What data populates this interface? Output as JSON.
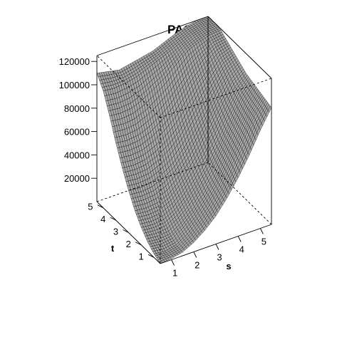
{
  "chart_data": {
    "type": "surface",
    "title": "PACE",
    "xlabel": "s",
    "ylabel": "t",
    "zlabel": "",
    "xlim": [
      0.5,
      5.5
    ],
    "ylim": [
      0.5,
      5.5
    ],
    "zlim": [
      0,
      125000
    ],
    "x_ticks": [
      "1",
      "2",
      "3",
      "4",
      "5"
    ],
    "y_ticks": [
      "1",
      "2",
      "3",
      "4",
      "5"
    ],
    "z_ticks": [
      "20000",
      "40000",
      "60000",
      "80000",
      "100000",
      "120000"
    ],
    "surface_color": "#a9a9a9",
    "mesh_color": "#000000",
    "box": true,
    "grid": false,
    "x_grid": [
      0.5,
      1.0,
      1.5,
      2.0,
      2.5,
      3.0,
      3.5,
      4.0,
      4.5,
      5.0,
      5.5
    ],
    "y_grid": [
      0.5,
      1.0,
      1.5,
      2.0,
      2.5,
      3.0,
      3.5,
      4.0,
      4.5,
      5.0,
      5.5
    ],
    "z_values": [
      [
        0,
        1000,
        3000,
        8000,
        15000,
        24000,
        36000,
        50000,
        66000,
        84000,
        100000
      ],
      [
        3000,
        2000,
        4000,
        10000,
        18000,
        28000,
        40000,
        56000,
        72000,
        90000,
        102000
      ],
      [
        8000,
        7000,
        8000,
        14000,
        22000,
        32000,
        44000,
        60000,
        76000,
        92000,
        104000
      ],
      [
        15000,
        14000,
        15000,
        20000,
        28000,
        38000,
        50000,
        64000,
        80000,
        96000,
        106000
      ],
      [
        24000,
        23000,
        24000,
        28000,
        36000,
        46000,
        58000,
        72000,
        86000,
        100000,
        108000
      ],
      [
        36000,
        35000,
        36000,
        40000,
        46000,
        56000,
        68000,
        80000,
        94000,
        106000,
        112000
      ],
      [
        50000,
        49000,
        50000,
        54000,
        60000,
        68000,
        80000,
        92000,
        102000,
        112000,
        116000
      ],
      [
        66000,
        65000,
        66000,
        70000,
        76000,
        84000,
        94000,
        104000,
        112000,
        118000,
        120000
      ],
      [
        84000,
        83000,
        84000,
        88000,
        94000,
        100000,
        108000,
        116000,
        120000,
        123000,
        124000
      ],
      [
        100000,
        99000,
        100000,
        102000,
        106000,
        110000,
        114000,
        118000,
        122000,
        124000,
        125000
      ],
      [
        110000,
        108000,
        106000,
        108000,
        110000,
        112000,
        116000,
        120000,
        123000,
        125000,
        125000
      ]
    ]
  }
}
